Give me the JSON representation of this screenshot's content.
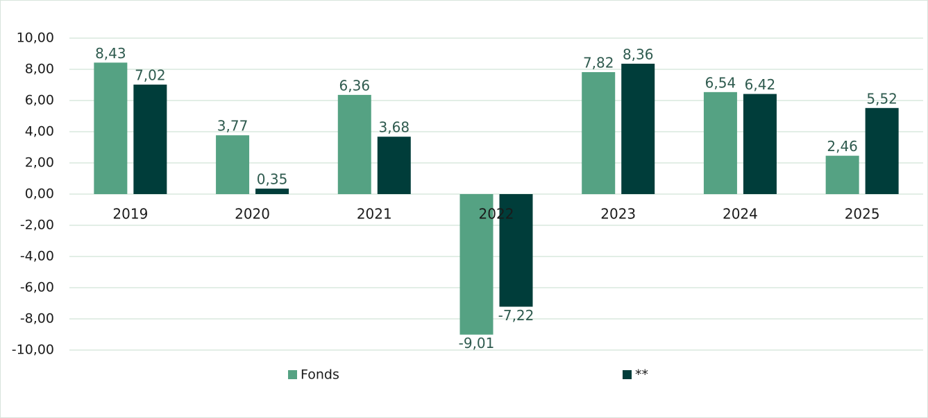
{
  "chart_data": {
    "type": "bar",
    "categories": [
      "2019",
      "2020",
      "2021",
      "2022",
      "2023",
      "2024",
      "2025"
    ],
    "series": [
      {
        "name": "Fonds",
        "color": "#55a283",
        "values": [
          8.43,
          3.77,
          6.36,
          -9.01,
          7.82,
          6.54,
          2.46
        ],
        "value_labels": [
          "8,43",
          "3,77",
          "6,36",
          "-9,01",
          "7,82",
          "6,54",
          "2,46"
        ]
      },
      {
        "name": "**",
        "color": "#003d3a",
        "values": [
          7.02,
          0.35,
          3.68,
          -7.22,
          8.36,
          6.42,
          5.52
        ],
        "value_labels": [
          "7,02",
          "0,35",
          "3,68",
          "-7,22",
          "8,36",
          "6,42",
          "5,52"
        ]
      }
    ],
    "ylim": [
      -10,
      10
    ],
    "yticks": [
      {
        "value": -10,
        "label": "-10,00"
      },
      {
        "value": -8,
        "label": "-8,00"
      },
      {
        "value": -6,
        "label": "-6,00"
      },
      {
        "value": -4,
        "label": "-4,00"
      },
      {
        "value": -2,
        "label": "-2,00"
      },
      {
        "value": 0,
        "label": "0,00"
      },
      {
        "value": 2,
        "label": "2,00"
      },
      {
        "value": 4,
        "label": "4,00"
      },
      {
        "value": 6,
        "label": "6,00"
      },
      {
        "value": 8,
        "label": "8,00"
      },
      {
        "value": 10,
        "label": "10,00"
      }
    ],
    "grid": true,
    "legend": "bottom"
  }
}
